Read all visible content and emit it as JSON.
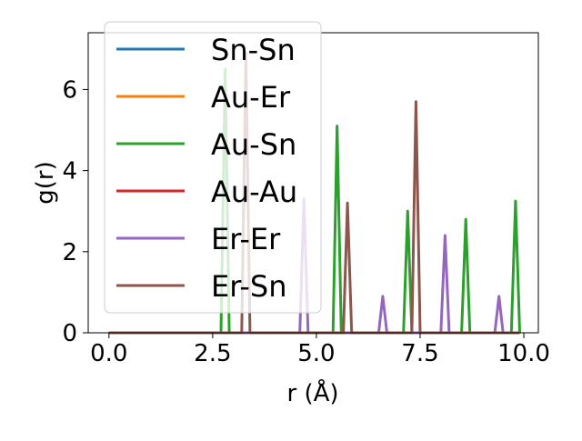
{
  "chart_data": {
    "type": "line",
    "xlabel": "r (Å)",
    "ylabel": "g(r)",
    "xlim": [
      -0.5,
      10.35
    ],
    "ylim": [
      0,
      7.4
    ],
    "xticks": [
      0.0,
      2.5,
      5.0,
      7.5,
      10.0
    ],
    "xtick_labels": [
      "0.0",
      "2.5",
      "5.0",
      "7.5",
      "10.0"
    ],
    "yticks": [
      0,
      2,
      4,
      6
    ],
    "ytick_labels": [
      "0",
      "2",
      "4",
      "6"
    ],
    "legend_position": "top-left",
    "peak_half_width": 0.1,
    "series": [
      {
        "name": "Sn-Sn",
        "color": "#1f77b4",
        "peaks": []
      },
      {
        "name": "Au-Er",
        "color": "#ff7f0e",
        "peaks": []
      },
      {
        "name": "Au-Sn",
        "color": "#2ca02c",
        "peaks": [
          [
            2.8,
            6.5
          ],
          [
            5.5,
            5.1
          ],
          [
            7.2,
            3.0
          ],
          [
            8.6,
            2.8
          ],
          [
            9.8,
            3.25
          ]
        ]
      },
      {
        "name": "Au-Au",
        "color": "#d62728",
        "peaks": []
      },
      {
        "name": "Er-Er",
        "color": "#9467bd",
        "peaks": [
          [
            4.7,
            3.3
          ],
          [
            6.6,
            0.9
          ],
          [
            8.1,
            2.4
          ],
          [
            9.4,
            0.9
          ]
        ]
      },
      {
        "name": "Er-Sn",
        "color": "#8c564b",
        "peaks": [
          [
            3.3,
            6.9
          ],
          [
            5.75,
            3.2
          ],
          [
            7.4,
            5.7
          ]
        ]
      }
    ]
  }
}
